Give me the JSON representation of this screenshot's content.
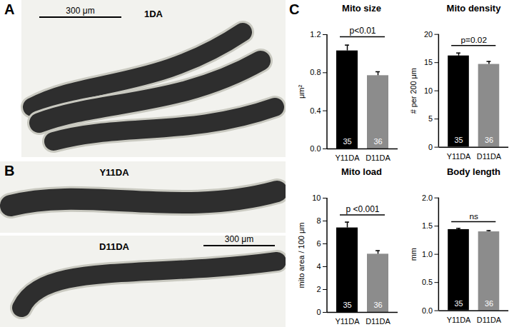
{
  "panels": {
    "A": {
      "label": "A",
      "title": "1DA",
      "scale_bar": "300 μm"
    },
    "B": {
      "label": "B",
      "labels": [
        "Y11DA",
        "D11DA"
      ],
      "scale_bar": "300 μm"
    },
    "C": {
      "label": "C"
    }
  },
  "chart_data": [
    {
      "type": "bar",
      "title": "Mito size",
      "y_label": "μm²",
      "categories": [
        "Y11DA",
        "D11DA"
      ],
      "values": [
        1.03,
        0.77
      ],
      "errors": [
        0.06,
        0.04
      ],
      "n": [
        35,
        36
      ],
      "colors": [
        "#000000",
        "#8c8c8c"
      ],
      "ylim": [
        0,
        1.2
      ],
      "yticks": [
        {
          "value": 0,
          "label": "0.0"
        },
        {
          "value": 0.4,
          "label": "0.4"
        },
        {
          "value": 0.8,
          "label": "0.8"
        },
        {
          "value": 1.2,
          "label": "1.2"
        }
      ],
      "annotation": "p<0.01"
    },
    {
      "type": "bar",
      "title": "Mito density",
      "y_label": "# per 200 μm",
      "categories": [
        "Y11DA",
        "D11DA"
      ],
      "values": [
        16.2,
        14.7
      ],
      "errors": [
        0.5,
        0.5
      ],
      "n": [
        35,
        36
      ],
      "colors": [
        "#000000",
        "#8c8c8c"
      ],
      "ylim": [
        0,
        20
      ],
      "yticks": [
        0,
        5,
        10,
        15,
        20
      ],
      "annotation": "p=0.02"
    },
    {
      "type": "bar",
      "title": "Mito load",
      "y_label": "mito area / 100 μm",
      "categories": [
        "Y11DA",
        "D11DA"
      ],
      "values": [
        7.4,
        5.1
      ],
      "errors": [
        0.5,
        0.3
      ],
      "n": [
        35,
        36
      ],
      "colors": [
        "#000000",
        "#8c8c8c"
      ],
      "ylim": [
        0,
        10
      ],
      "yticks": [
        0,
        2,
        4,
        6,
        8,
        10
      ],
      "annotation": "p <0.001"
    },
    {
      "type": "bar",
      "title": "Body length",
      "y_label": "mm",
      "categories": [
        "Y11DA",
        "D11DA"
      ],
      "values": [
        1.44,
        1.4
      ],
      "errors": [
        0.02,
        0.02
      ],
      "n": [
        35,
        36
      ],
      "colors": [
        "#000000",
        "#8c8c8c"
      ],
      "ylim": [
        0,
        2.0
      ],
      "yticks": [
        {
          "value": 0,
          "label": "0.0"
        },
        {
          "value": 0.5,
          "label": "0.5"
        },
        {
          "value": 1.0,
          "label": "1.0"
        },
        {
          "value": 1.5,
          "label": "1.5"
        },
        {
          "value": 2.0,
          "label": "2.0"
        }
      ],
      "annotation": "ns"
    }
  ]
}
